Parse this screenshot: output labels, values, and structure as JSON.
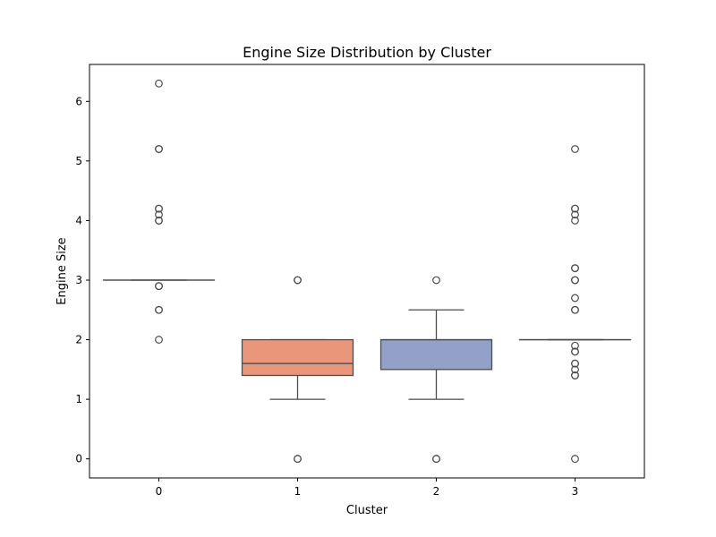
{
  "chart_data": {
    "type": "box",
    "title": "Engine Size Distribution by Cluster",
    "xlabel": "Cluster",
    "ylabel": "Engine Size",
    "ylim": [
      -0.32,
      6.62
    ],
    "yticks": [
      0,
      1,
      2,
      3,
      4,
      5,
      6
    ],
    "categories": [
      "0",
      "1",
      "2",
      "3"
    ],
    "boxes": [
      {
        "category": "0",
        "q1": 3.0,
        "median": 3.0,
        "q3": 3.0,
        "whisker_low": 3.0,
        "whisker_high": 3.0,
        "color": "#66c2a5",
        "outliers": [
          6.3,
          5.2,
          5.2,
          4.2,
          4.2,
          4.1,
          4.0,
          4.0,
          2.9,
          2.9,
          2.5,
          2.5,
          2.0
        ]
      },
      {
        "category": "1",
        "q1": 1.4,
        "median": 1.6,
        "q3": 2.0,
        "whisker_low": 1.0,
        "whisker_high": 2.0,
        "color": "#e9967a",
        "outliers": [
          3.0,
          3.0,
          0.0,
          0.0
        ]
      },
      {
        "category": "2",
        "q1": 1.5,
        "median": 2.0,
        "q3": 2.0,
        "whisker_low": 1.0,
        "whisker_high": 2.5,
        "color": "#93a0c8",
        "outliers": [
          3.0,
          0.0,
          0.0
        ]
      },
      {
        "category": "3",
        "q1": 2.0,
        "median": 2.0,
        "q3": 2.0,
        "whisker_low": 2.0,
        "whisker_high": 2.0,
        "color": "#e78ac3",
        "outliers": [
          5.2,
          4.2,
          4.2,
          4.1,
          4.0,
          3.2,
          3.2,
          3.0,
          3.0,
          2.7,
          2.5,
          2.5,
          1.9,
          1.8,
          1.8,
          1.6,
          1.6,
          1.5,
          1.4,
          1.4,
          0.0
        ]
      }
    ],
    "colors": {
      "line": "#4d4d4d",
      "axes": "#000000"
    },
    "grid": false,
    "legend": "none"
  }
}
